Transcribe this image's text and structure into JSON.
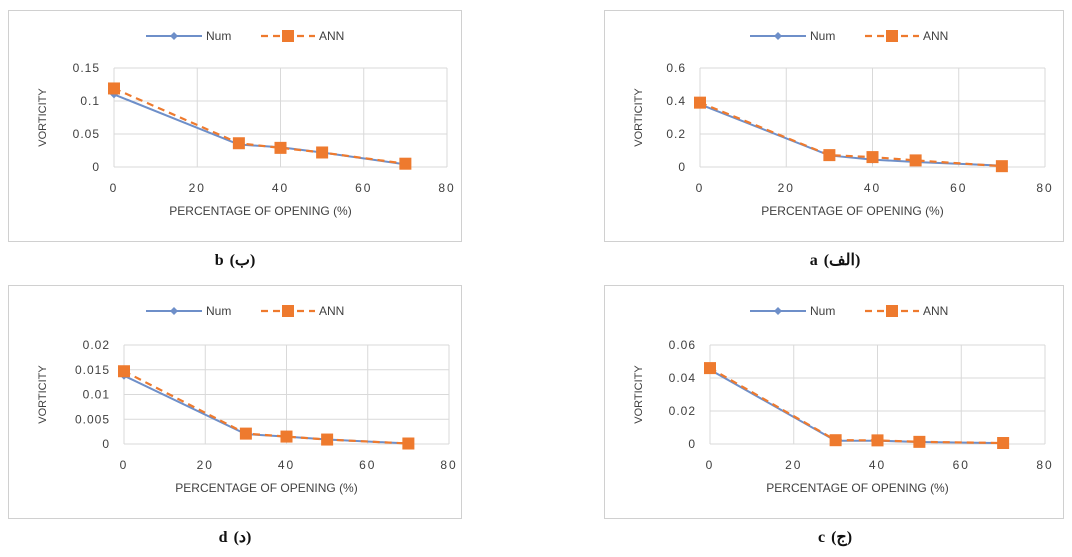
{
  "colors": {
    "num": "#6e8fc9",
    "ann": "#ee7a2e",
    "grid": "#d9d9d9",
    "axis_text": "#404040"
  },
  "chart_data": [
    {
      "id": "b",
      "type": "line",
      "caption": {
        "letter": "b",
        "sub": "(ب)"
      },
      "xlabel": "PERCENTAGE OF OPENING (%)",
      "ylabel": "VORTICITY",
      "xlim": [
        0,
        80
      ],
      "x_ticks": [
        "0",
        "20",
        "40",
        "60",
        "80"
      ],
      "ylim": [
        0,
        0.15
      ],
      "y_ticks": [
        "0",
        "0.05",
        "0.1",
        "0.15"
      ],
      "grid": true,
      "legend": "top",
      "x": [
        0,
        30,
        40,
        50,
        70
      ],
      "series": [
        {
          "name": "Num",
          "values": [
            0.11,
            0.034,
            0.03,
            0.022,
            0.004
          ]
        },
        {
          "name": "ANN",
          "values": [
            0.119,
            0.036,
            0.029,
            0.022,
            0.005
          ]
        }
      ]
    },
    {
      "id": "a",
      "type": "line",
      "caption": {
        "letter": "a",
        "sub": "(الف)"
      },
      "xlabel": "PERCENTAGE OF OPENING (%)",
      "ylabel": "VORTICITY",
      "xlim": [
        0,
        80
      ],
      "x_ticks": [
        "0",
        "20",
        "40",
        "60",
        "80"
      ],
      "ylim": [
        0,
        0.6
      ],
      "y_ticks": [
        "0",
        "0.2",
        "0.4",
        "0.6"
      ],
      "grid": true,
      "legend": "top",
      "x": [
        0,
        30,
        40,
        50,
        70
      ],
      "series": [
        {
          "name": "Num",
          "values": [
            0.38,
            0.07,
            0.045,
            0.03,
            0.008
          ]
        },
        {
          "name": "ANN",
          "values": [
            0.39,
            0.072,
            0.06,
            0.04,
            0.005
          ]
        }
      ]
    },
    {
      "id": "d",
      "type": "line",
      "caption": {
        "letter": "d",
        "sub": "(د)"
      },
      "xlabel": "PERCENTAGE OF OPENING (%)",
      "ylabel": "VORTICITY",
      "xlim": [
        0,
        80
      ],
      "x_ticks": [
        "0",
        "20",
        "40",
        "60",
        "80"
      ],
      "ylim": [
        0,
        0.02
      ],
      "y_ticks": [
        "0",
        "0.005",
        "0.01",
        "0.015",
        "0.02"
      ],
      "grid": true,
      "legend": "top",
      "x": [
        0,
        30,
        40,
        50,
        70
      ],
      "series": [
        {
          "name": "Num",
          "values": [
            0.0138,
            0.002,
            0.0015,
            0.0009,
            0.0001
          ]
        },
        {
          "name": "ANN",
          "values": [
            0.0147,
            0.0021,
            0.0015,
            0.0009,
            0.0001
          ]
        }
      ]
    },
    {
      "id": "c",
      "type": "line",
      "caption": {
        "letter": "c",
        "sub": "(ج)"
      },
      "xlabel": "PERCENTAGE OF OPENING (%)",
      "ylabel": "VORTICITY",
      "xlim": [
        0,
        80
      ],
      "x_ticks": [
        "0",
        "20",
        "40",
        "60",
        "80"
      ],
      "ylim": [
        0,
        0.06
      ],
      "y_ticks": [
        "0",
        "0.02",
        "0.04",
        "0.06"
      ],
      "grid": true,
      "legend": "top",
      "x": [
        0,
        30,
        40,
        50,
        70
      ],
      "series": [
        {
          "name": "Num",
          "values": [
            0.045,
            0.002,
            0.002,
            0.0012,
            0.0005
          ]
        },
        {
          "name": "ANN",
          "values": [
            0.046,
            0.0023,
            0.0022,
            0.0013,
            0.0006
          ]
        }
      ]
    }
  ]
}
